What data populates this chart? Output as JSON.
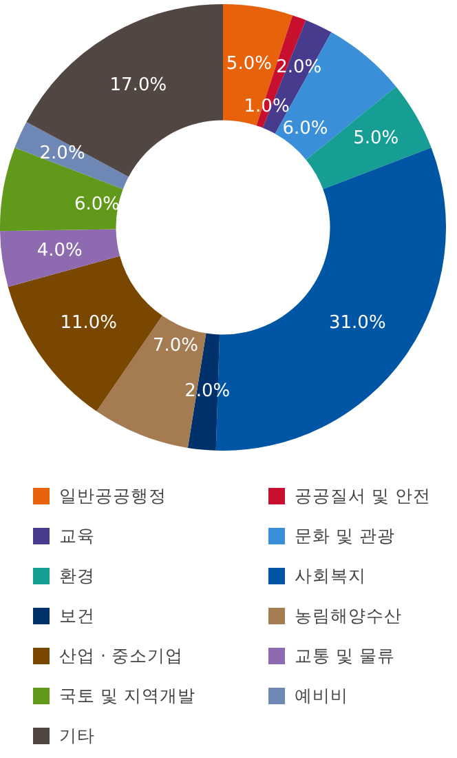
{
  "chart_data": {
    "type": "donut",
    "categories": [
      "일반공공행정",
      "공공질서 및 안전",
      "교육",
      "문화 및 관광",
      "환경",
      "사회복지",
      "보건",
      "농림해양수산",
      "산업 · 중소기업",
      "교통 및 물류",
      "국토 및 지역개발",
      "예비비",
      "기타"
    ],
    "values": [
      5.0,
      1.0,
      2.0,
      6.0,
      5.0,
      31.0,
      2.0,
      7.0,
      11.0,
      4.0,
      6.0,
      2.0,
      17.0
    ],
    "colors": [
      "#e8620c",
      "#c8102e",
      "#463b8c",
      "#3b8fd8",
      "#169e94",
      "#0055a5",
      "#00316b",
      "#a57b51",
      "#7a4700",
      "#8e6bb0",
      "#619a1b",
      "#6e87b4",
      "#514641"
    ],
    "value_labels": [
      "5.0%",
      "1.0%",
      "2.0%",
      "6.0%",
      "5.0%",
      "31.0%",
      "2.0%",
      "7.0%",
      "11.0%",
      "4.0%",
      "6.0%",
      "2.0%",
      "17.0%"
    ],
    "legend": "bottom"
  }
}
